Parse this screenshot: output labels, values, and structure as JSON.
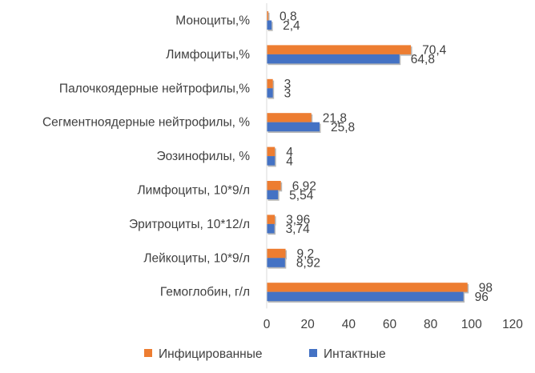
{
  "chart_data": {
    "type": "bar",
    "orientation": "horizontal",
    "categories": [
      "Моноциты,%",
      "Лимфоциты,%",
      "Палочкоядерные нейтрофилы,%",
      "Сегментноядерные нейтрофилы, %",
      "Эозинофилы, %",
      "Лимфоциты, 10*9/л",
      "Эритроциты, 10*12/л",
      "Лейкоциты, 10*9/л",
      "Гемоглобин, г/л"
    ],
    "series": [
      {
        "name": "Инфицированные",
        "color": "#ED7D31",
        "values": [
          0.8,
          70.4,
          3,
          21.8,
          4,
          6.92,
          3.96,
          9.2,
          98
        ],
        "labels": [
          "0,8",
          "70,4",
          "3",
          "21,8",
          "4",
          "6,92",
          "3,96",
          "9,2",
          "98"
        ]
      },
      {
        "name": "Интактные",
        "color": "#4472C4",
        "values": [
          2.4,
          64.8,
          3,
          25.8,
          4,
          5.54,
          3.74,
          8.92,
          96
        ],
        "labels": [
          "2,4",
          "64,8",
          "3",
          "25,8",
          "4",
          "5,54",
          "3,74",
          "8,92",
          "96"
        ]
      }
    ],
    "xlim": [
      0,
      120
    ],
    "xticks": [
      0,
      20,
      40,
      60,
      80,
      100,
      120
    ],
    "xtick_labels": [
      "0",
      "20",
      "40",
      "60",
      "80",
      "100",
      "120"
    ],
    "title": "",
    "xlabel": "",
    "ylabel": "",
    "grid": false,
    "legend_position": "bottom",
    "axis_color": "#D9D9D9"
  }
}
